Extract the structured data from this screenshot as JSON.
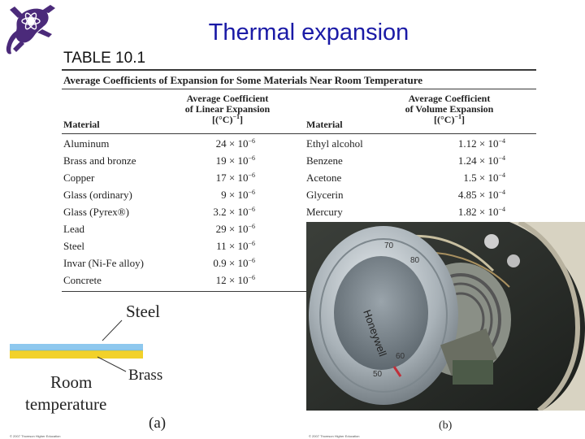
{
  "title": "Thermal expansion",
  "table": {
    "label": "TABLE 10.1",
    "caption": "Average Coefficients of Expansion for Some Materials Near Room Temperature",
    "headers": {
      "material_left": "Material",
      "linear_line1": "Average Coefficient",
      "linear_line2": "of Linear Expansion",
      "linear_unit": "[(°C)",
      "linear_unit_exp": "−1",
      "linear_unit_end": "]",
      "material_right": "Material",
      "volume_line1": "Average Coefficient",
      "volume_line2": "of Volume Expansion",
      "volume_unit": "[(°C)",
      "volume_unit_exp": "−1",
      "volume_unit_end": "]"
    },
    "left_rows": [
      {
        "material": "Aluminum",
        "mantissa": "24 × 10",
        "exp": "−6"
      },
      {
        "material": "Brass and bronze",
        "mantissa": "19 × 10",
        "exp": "−6"
      },
      {
        "material": "Copper",
        "mantissa": "17 × 10",
        "exp": "−6"
      },
      {
        "material": "Glass (ordinary)",
        "mantissa": "9 × 10",
        "exp": "−6"
      },
      {
        "material": "Glass (Pyrex®)",
        "mantissa": "3.2 × 10",
        "exp": "−6"
      },
      {
        "material": "Lead",
        "mantissa": "29 × 10",
        "exp": "−6"
      },
      {
        "material": "Steel",
        "mantissa": "11 × 10",
        "exp": "−6"
      },
      {
        "material": "Invar (Ni-Fe alloy)",
        "mantissa": "0.9 × 10",
        "exp": "−6"
      },
      {
        "material": "Concrete",
        "mantissa": "12 × 10",
        "exp": "−6"
      }
    ],
    "right_rows": [
      {
        "material": "Ethyl alcohol",
        "mantissa": "1.12 × 10",
        "exp": "−4"
      },
      {
        "material": "Benzene",
        "mantissa": "1.24 × 10",
        "exp": "−4"
      },
      {
        "material": "Acetone",
        "mantissa": "1.5 × 10",
        "exp": "−4"
      },
      {
        "material": "Glycerin",
        "mantissa": "4.85 × 10",
        "exp": "−4"
      },
      {
        "material": "Mercury",
        "mantissa": "1.82 × 10",
        "exp": "−4"
      }
    ]
  },
  "figure_a": {
    "steel_label": "Steel",
    "brass_label": "Brass",
    "room_label_1": "Room",
    "room_label_2": "temperature",
    "panel_label": "(a)",
    "credit": "© 2007 Thomson Higher Education"
  },
  "figure_b": {
    "brand": "Honeywell",
    "dial_numbers": [
      "70",
      "80",
      "60",
      "50"
    ],
    "panel_label": "(b)",
    "credit": "© 2007 Thomson Higher Education"
  },
  "colors": {
    "title": "#1a1aa6",
    "logo": "#4b2a7a",
    "steel_strip": "#8ec8ee",
    "brass_strip": "#f2d12a"
  }
}
